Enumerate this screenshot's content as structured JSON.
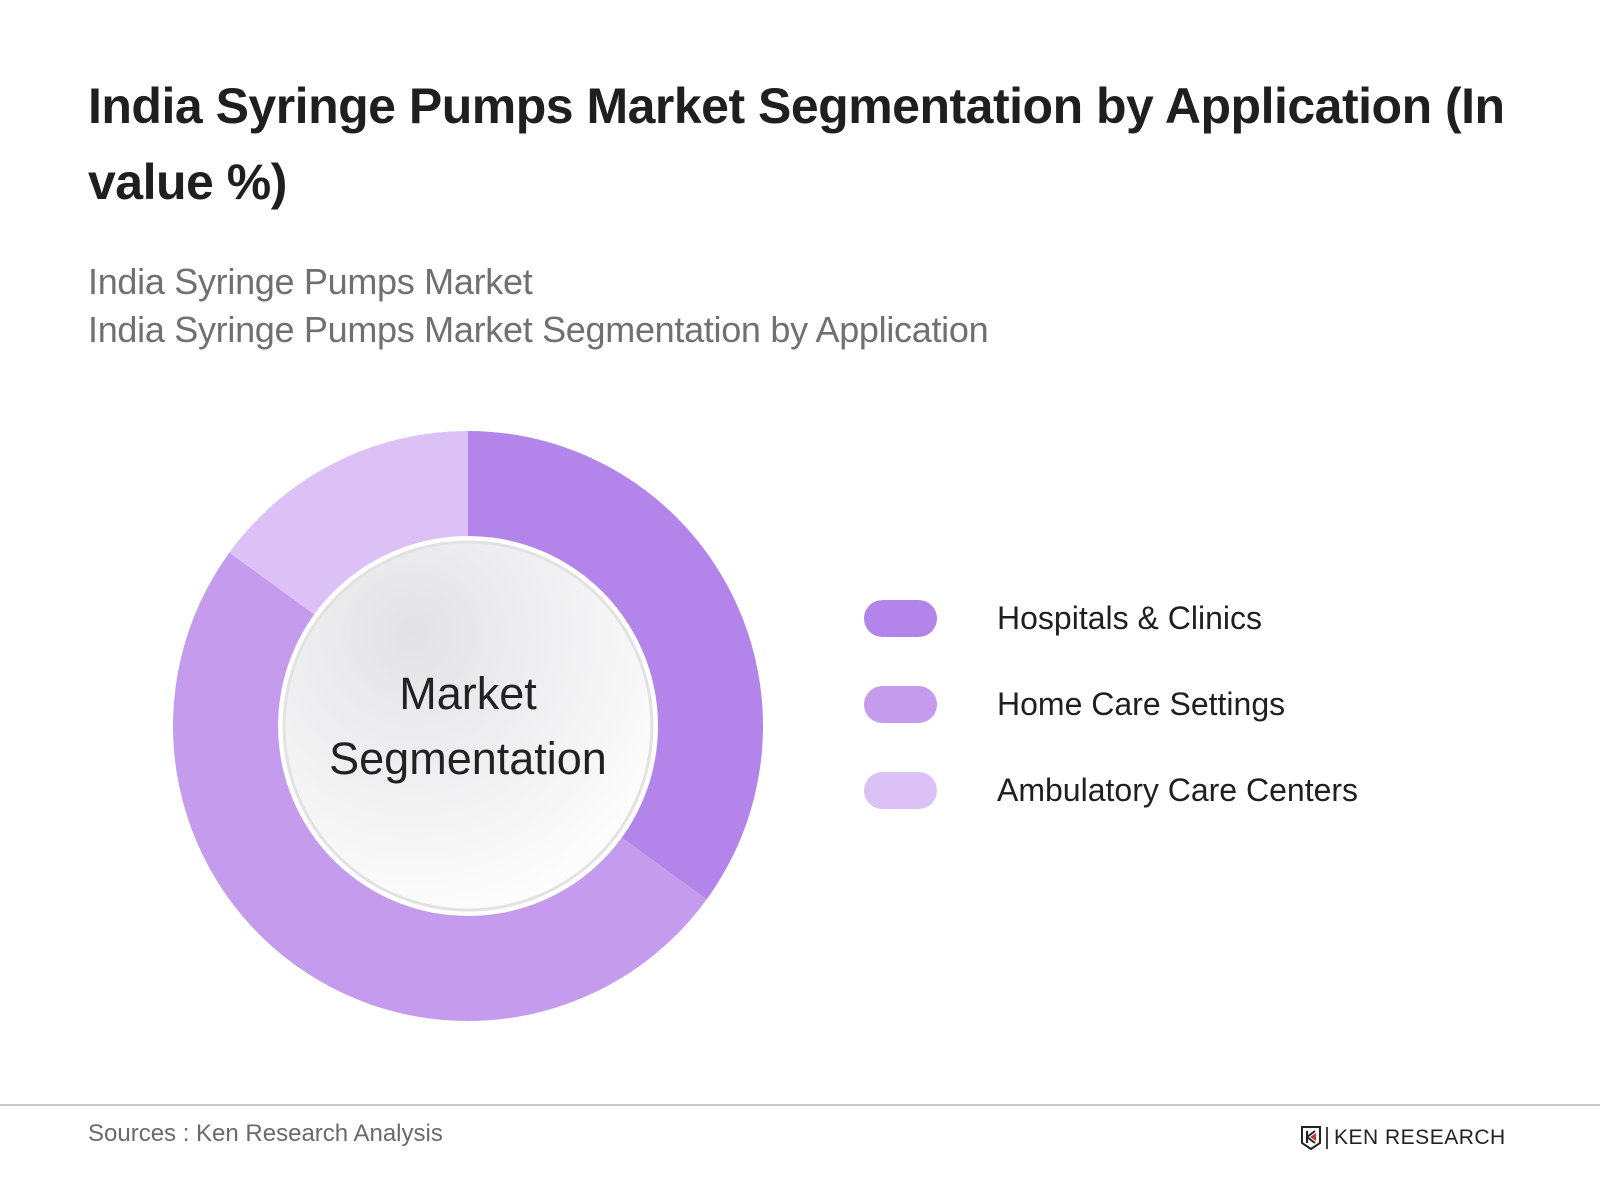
{
  "header": {
    "title": "India Syringe Pumps Market Segmentation by Application (In value %)",
    "subtitle_lines": [
      "India Syringe Pumps Market",
      "India Syringe Pumps Market Segmentation by Application"
    ]
  },
  "donut": {
    "center_label_lines": [
      "Market",
      "Segmentation"
    ]
  },
  "legend": {
    "items": [
      {
        "label": "Hospitals & Clinics",
        "color": "#b384ea"
      },
      {
        "label": "Home Care Settings",
        "color": "#c59ced"
      },
      {
        "label": "Ambulatory Care Centers",
        "color": "#dcc1f7"
      }
    ]
  },
  "footer": {
    "source": "Sources : Ken Research Analysis",
    "logo_text": "KEN RESEARCH"
  },
  "chart_data": {
    "type": "pie",
    "variant": "donut",
    "title": "India Syringe Pumps Market Segmentation by Application (In value %)",
    "subtitle": "India Syringe Pumps Market / India Syringe Pumps Market Segmentation by Application",
    "center_text": "Market Segmentation",
    "categories": [
      "Hospitals & Clinics",
      "Home Care Settings",
      "Ambulatory Care Centers"
    ],
    "values": [
      35,
      50,
      15
    ],
    "colors": [
      "#b384ea",
      "#c59ced",
      "#dcc1f7"
    ],
    "unit": "%",
    "start_angle_deg": 0,
    "direction": "clockwise",
    "legend_position": "right",
    "data_labels": false
  }
}
